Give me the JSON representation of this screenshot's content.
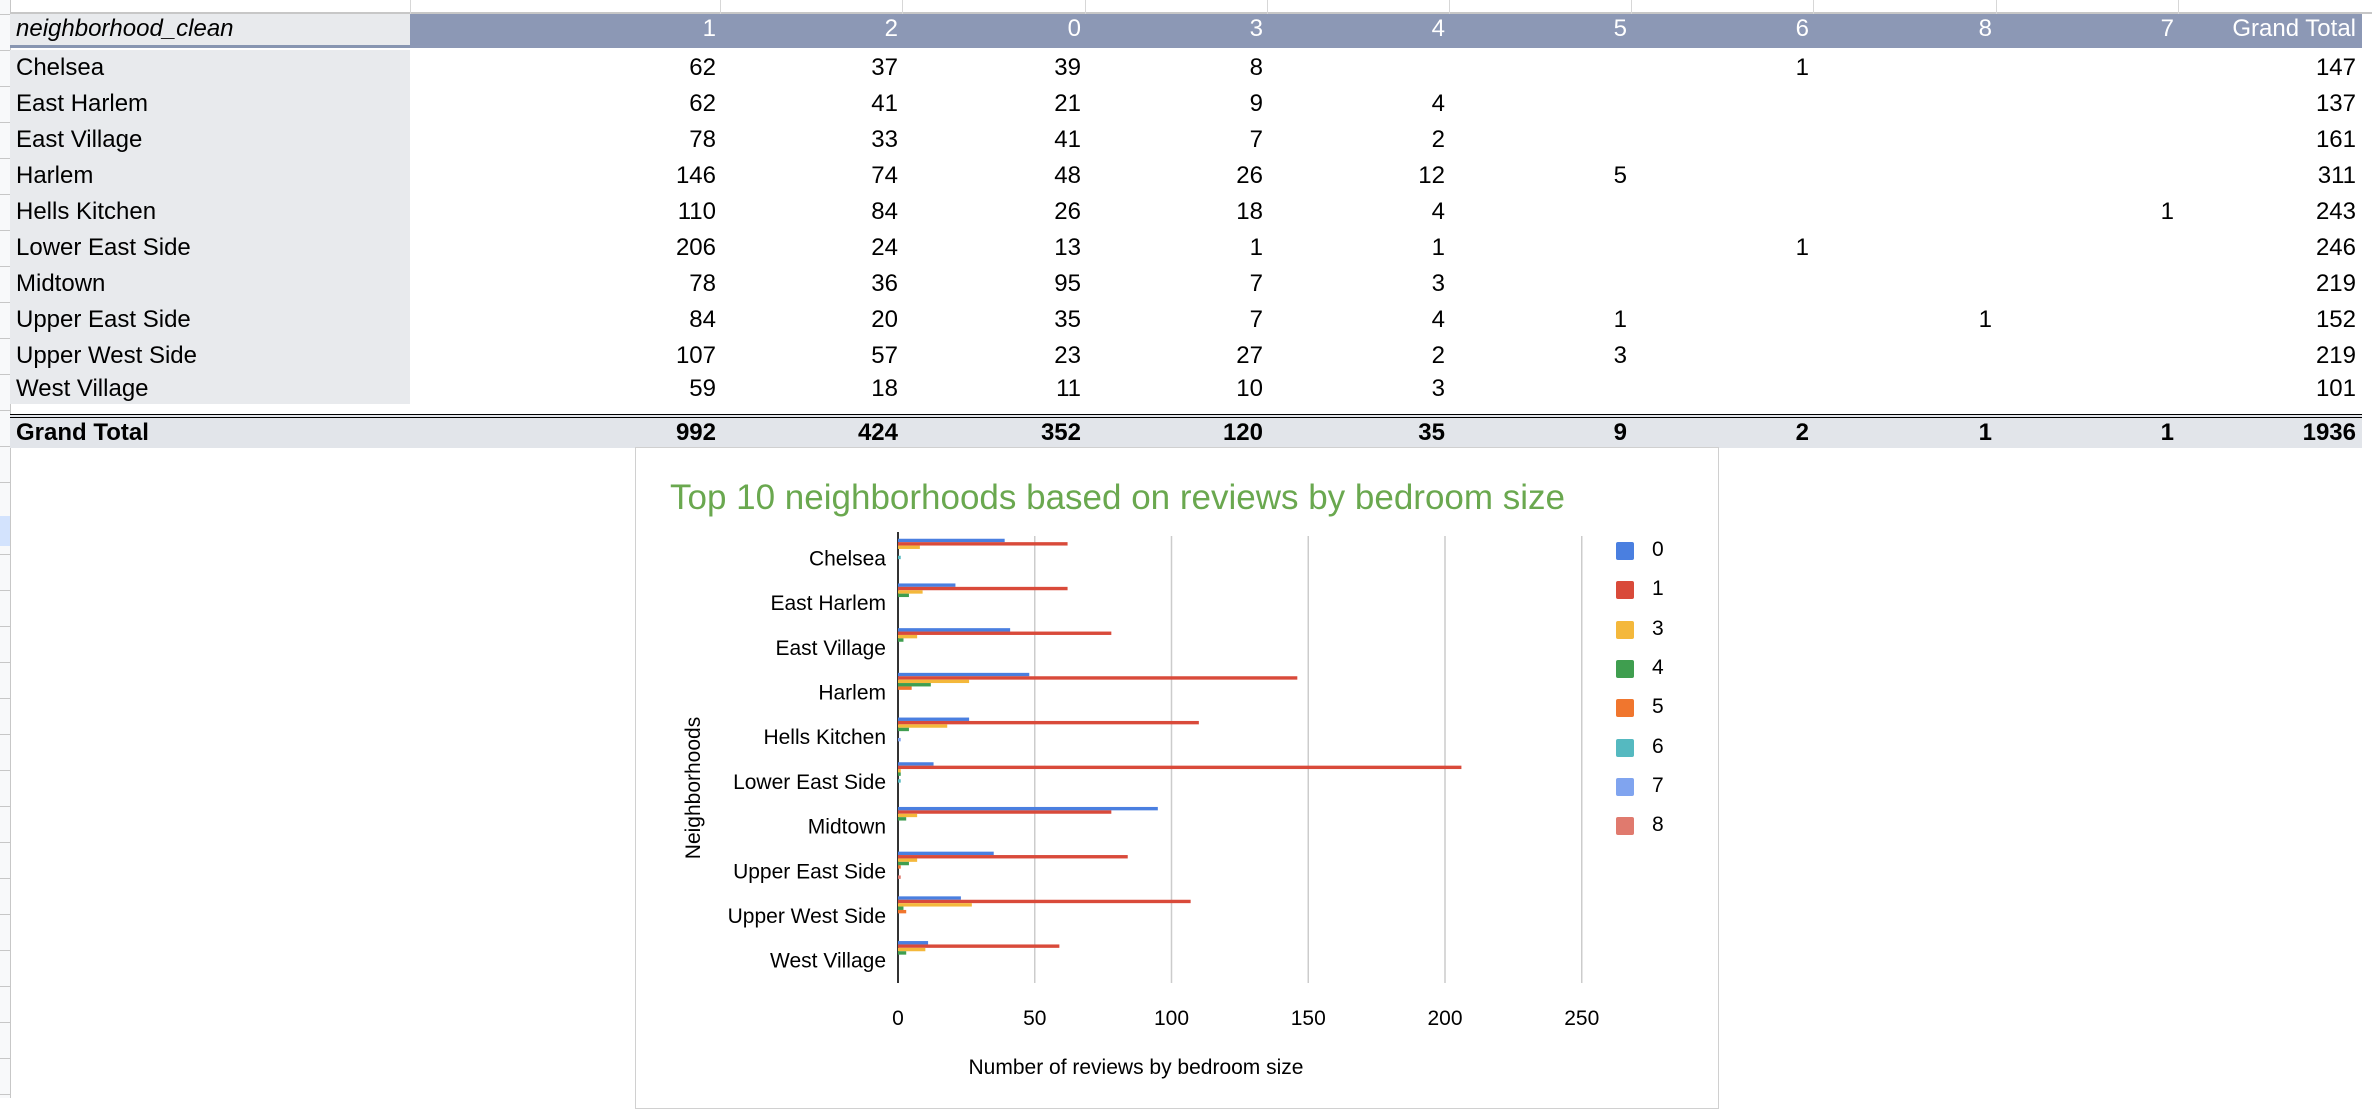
{
  "pivot": {
    "row_header": "neighborhood_clean",
    "columns": [
      "1",
      "2",
      "0",
      "3",
      "4",
      "5",
      "6",
      "8",
      "7",
      "Grand Total"
    ],
    "rows": [
      {
        "label": "Chelsea",
        "values": [
          "62",
          "37",
          "39",
          "8",
          "",
          "",
          "1",
          "",
          "",
          "147"
        ]
      },
      {
        "label": "East Harlem",
        "values": [
          "62",
          "41",
          "21",
          "9",
          "4",
          "",
          "",
          "",
          "",
          "137"
        ]
      },
      {
        "label": "East Village",
        "values": [
          "78",
          "33",
          "41",
          "7",
          "2",
          "",
          "",
          "",
          "",
          "161"
        ]
      },
      {
        "label": "Harlem",
        "values": [
          "146",
          "74",
          "48",
          "26",
          "12",
          "5",
          "",
          "",
          "",
          "311"
        ]
      },
      {
        "label": "Hells Kitchen",
        "values": [
          "110",
          "84",
          "26",
          "18",
          "4",
          "",
          "",
          "",
          "1",
          "243"
        ]
      },
      {
        "label": "Lower East Side",
        "values": [
          "206",
          "24",
          "13",
          "1",
          "1",
          "",
          "1",
          "",
          "",
          "246"
        ]
      },
      {
        "label": "Midtown",
        "values": [
          "78",
          "36",
          "95",
          "7",
          "3",
          "",
          "",
          "",
          "",
          "219"
        ]
      },
      {
        "label": "Upper East Side",
        "values": [
          "84",
          "20",
          "35",
          "7",
          "4",
          "1",
          "",
          "1",
          "",
          "152"
        ]
      },
      {
        "label": "Upper West Side",
        "values": [
          "107",
          "57",
          "23",
          "27",
          "2",
          "3",
          "",
          "",
          "",
          "219"
        ]
      },
      {
        "label": "West Village",
        "values": [
          "59",
          "18",
          "11",
          "10",
          "3",
          "",
          "",
          "",
          "",
          "101"
        ]
      }
    ],
    "total": {
      "label": "Grand Total",
      "values": [
        "992",
        "424",
        "352",
        "120",
        "35",
        "9",
        "2",
        "1",
        "1",
        "1936"
      ]
    }
  },
  "chart_data": {
    "type": "bar",
    "orientation": "horizontal",
    "title": "Top 10 neighborhoods based on reviews by bedroom size",
    "xlabel": "Number of reviews by bedroom size",
    "ylabel": "Neighborhoods",
    "categories": [
      "Chelsea",
      "East Harlem",
      "East Village",
      "Harlem",
      "Hells Kitchen",
      "Lower East Side",
      "Midtown",
      "Upper East Side",
      "Upper West Side",
      "West Village"
    ],
    "xlim": [
      0,
      250
    ],
    "xticks": [
      0,
      50,
      100,
      150,
      200,
      250
    ],
    "grid": true,
    "legend_position": "right",
    "series": [
      {
        "name": "0",
        "color": "#4a7fe0",
        "values": [
          39,
          21,
          41,
          48,
          26,
          13,
          95,
          35,
          23,
          11
        ]
      },
      {
        "name": "1",
        "color": "#d94a3a",
        "values": [
          62,
          62,
          78,
          146,
          110,
          206,
          78,
          84,
          107,
          59
        ]
      },
      {
        "name": "3",
        "color": "#f4b83b",
        "values": [
          8,
          9,
          7,
          26,
          18,
          1,
          7,
          7,
          27,
          10
        ]
      },
      {
        "name": "4",
        "color": "#3f9e4f",
        "values": [
          0,
          4,
          2,
          12,
          4,
          1,
          3,
          4,
          2,
          3
        ]
      },
      {
        "name": "5",
        "color": "#f0762e",
        "values": [
          0,
          0,
          0,
          5,
          0,
          0,
          0,
          1,
          3,
          0
        ]
      },
      {
        "name": "6",
        "color": "#55b9c0",
        "values": [
          1,
          0,
          0,
          0,
          0,
          1,
          0,
          0,
          0,
          0
        ]
      },
      {
        "name": "7",
        "color": "#80a4ef",
        "values": [
          0,
          0,
          0,
          0,
          1,
          0,
          0,
          0,
          0,
          0
        ]
      },
      {
        "name": "8",
        "color": "#e07a6e",
        "values": [
          0,
          0,
          0,
          0,
          0,
          0,
          0,
          1,
          0,
          0
        ]
      }
    ]
  }
}
